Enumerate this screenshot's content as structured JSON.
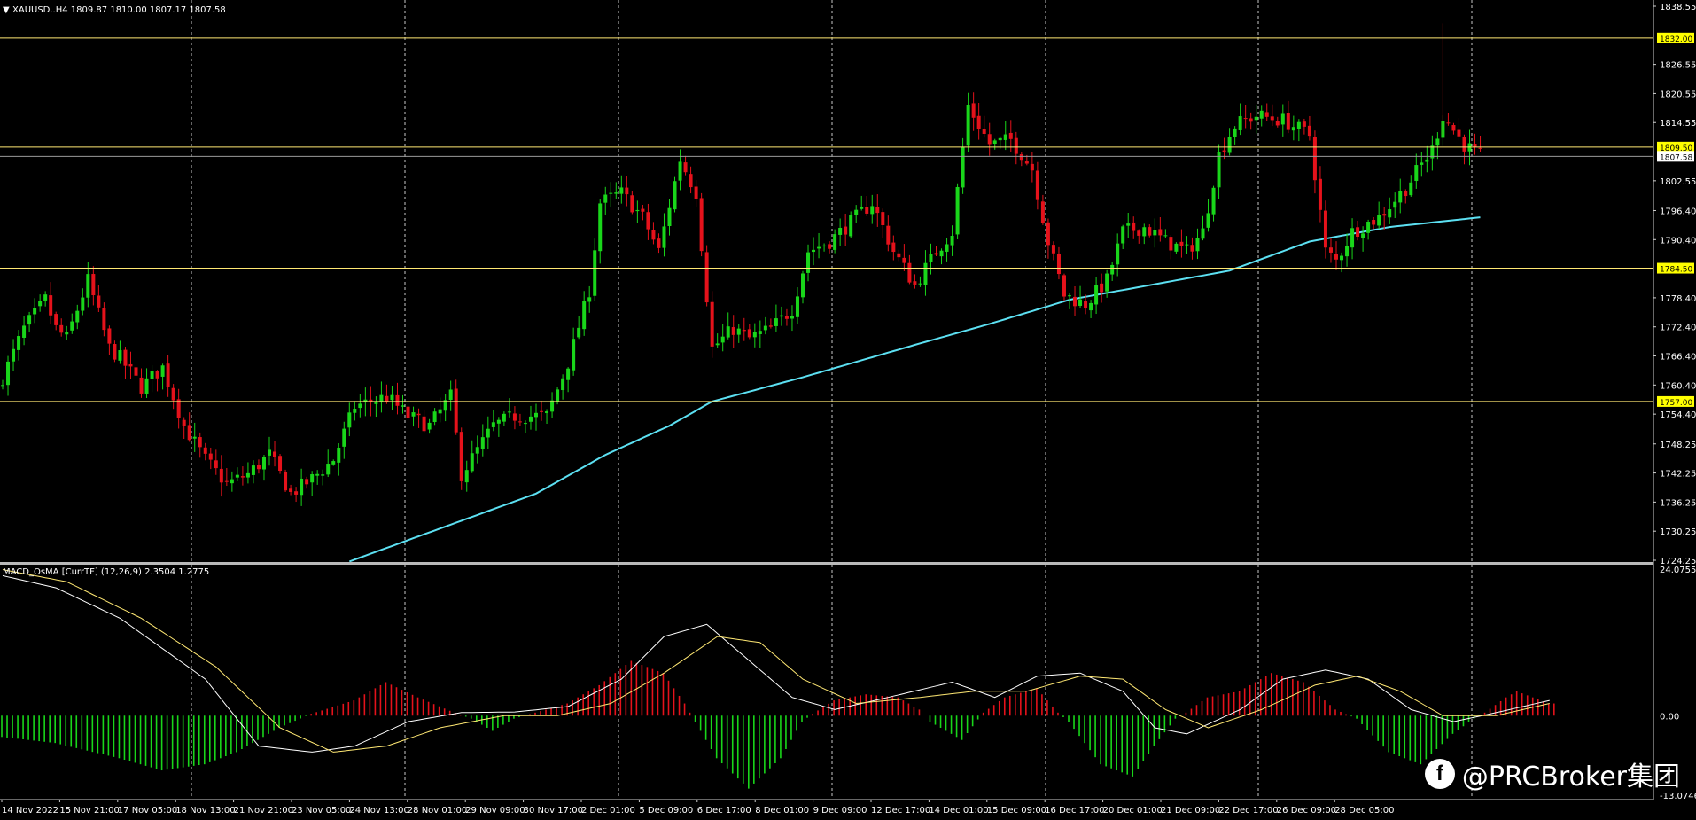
{
  "chart_data": [
    {
      "type": "candlestick",
      "symbol_header": "XAUUSD..H4  1809.87 1810.00 1807.17 1807.58",
      "symbol_marker_icon": "triangle-down-icon",
      "y_ticks": [
        "1838.55",
        "1826.55",
        "1820.55",
        "1814.55",
        "1802.55",
        "1796.40",
        "1790.40",
        "1778.40",
        "1772.40",
        "1766.40",
        "1760.40",
        "1754.40",
        "1748.25",
        "1742.25",
        "1736.25",
        "1730.25",
        "1724.25"
      ],
      "ylim": [
        1724.25,
        1838.55
      ],
      "x_ticks": [
        "14 Nov 2022",
        "15 Nov 21:00",
        "17 Nov 05:00",
        "18 Nov 13:00",
        "21 Nov 21:00",
        "23 Nov 05:00",
        "24 Nov 13:00",
        "28 Nov 01:00",
        "29 Nov 09:00",
        "30 Nov 17:00",
        "2 Dec 01:00",
        "5 Dec 09:00",
        "6 Dec 17:00",
        "8 Dec 01:00",
        "9 Dec 09:00",
        "12 Dec 17:00",
        "14 Dec 01:00",
        "15 Dec 09:00",
        "16 Dec 17:00",
        "20 Dec 01:00",
        "21 Dec 09:00",
        "22 Dec 17:00",
        "26 Dec 09:00",
        "28 Dec 05:00"
      ],
      "horizontal_levels": [
        {
          "value": 1832.0,
          "label": "1832.00"
        },
        {
          "value": 1809.5,
          "label": "1809.50"
        },
        {
          "value": 1784.5,
          "label": "1784.50"
        },
        {
          "value": 1757.0,
          "label": "1757.00"
        }
      ],
      "current_price": {
        "value": 1807.58,
        "label": "1807.58"
      },
      "key_closes": [
        [
          0,
          1762
        ],
        [
          4,
          1772
        ],
        [
          8,
          1778
        ],
        [
          10,
          1772
        ],
        [
          12,
          1770
        ],
        [
          16,
          1782
        ],
        [
          20,
          1768
        ],
        [
          22,
          1766
        ],
        [
          26,
          1760
        ],
        [
          30,
          1764
        ],
        [
          34,
          1752
        ],
        [
          38,
          1745
        ],
        [
          42,
          1740
        ],
        [
          46,
          1742
        ],
        [
          50,
          1746
        ],
        [
          54,
          1738
        ],
        [
          58,
          1741
        ],
        [
          62,
          1745
        ],
        [
          66,
          1756
        ],
        [
          72,
          1758
        ],
        [
          76,
          1754
        ],
        [
          80,
          1752
        ],
        [
          84,
          1758
        ],
        [
          86,
          1742
        ],
        [
          92,
          1752
        ],
        [
          96,
          1754
        ],
        [
          102,
          1754
        ],
        [
          106,
          1765
        ],
        [
          110,
          1780
        ],
        [
          112,
          1798
        ],
        [
          116,
          1800
        ],
        [
          120,
          1795
        ],
        [
          123,
          1788
        ],
        [
          127,
          1807
        ],
        [
          130,
          1800
        ],
        [
          133,
          1768
        ],
        [
          137,
          1772
        ],
        [
          140,
          1770
        ],
        [
          144,
          1772
        ],
        [
          148,
          1776
        ],
        [
          151,
          1788
        ],
        [
          155,
          1790
        ],
        [
          159,
          1794
        ],
        [
          163,
          1798
        ],
        [
          167,
          1788
        ],
        [
          171,
          1781
        ],
        [
          175,
          1788
        ],
        [
          178,
          1792
        ],
        [
          181,
          1818
        ],
        [
          185,
          1810
        ],
        [
          189,
          1811
        ],
        [
          193,
          1805
        ],
        [
          196,
          1790
        ],
        [
          199,
          1779
        ],
        [
          203,
          1777
        ],
        [
          207,
          1782
        ],
        [
          210,
          1792
        ],
        [
          214,
          1793
        ],
        [
          218,
          1790
        ],
        [
          222,
          1788
        ],
        [
          225,
          1792
        ],
        [
          228,
          1808
        ],
        [
          231,
          1814
        ],
        [
          235,
          1816
        ],
        [
          240,
          1815
        ],
        [
          245,
          1812
        ],
        [
          248,
          1788
        ],
        [
          250,
          1786
        ],
        [
          253,
          1792
        ],
        [
          258,
          1795
        ],
        [
          263,
          1801
        ],
        [
          266,
          1806
        ],
        [
          268,
          1809
        ],
        [
          270,
          1816
        ],
        [
          274,
          1810
        ],
        [
          277,
          1807.6
        ]
      ],
      "ma_series_color": "#5ce0f2",
      "ma_values": [
        [
          65,
          1724
        ],
        [
          80,
          1730
        ],
        [
          100,
          1738
        ],
        [
          113,
          1746
        ],
        [
          125,
          1752
        ],
        [
          133,
          1757
        ],
        [
          150,
          1762
        ],
        [
          172,
          1769
        ],
        [
          185,
          1773
        ],
        [
          200,
          1778
        ],
        [
          215,
          1781
        ],
        [
          230,
          1784
        ],
        [
          245,
          1790
        ],
        [
          260,
          1793
        ],
        [
          277,
          1795
        ]
      ],
      "colors": {
        "bull": "#19d61a",
        "bear": "#e5121b",
        "level": "#ffe873",
        "level_label_bg": "#ffff00",
        "grid": "#c8c8c8"
      }
    },
    {
      "type": "histogram+lines",
      "indicator_header": "MACD_OsMA [CurrTF] (12,26,9) 2.3504 1.2775",
      "y_ticks": [
        "24.0755",
        "0.00",
        "-13.0746"
      ],
      "ylim": [
        -13.0746,
        24.0755
      ],
      "histogram_key": [
        [
          0,
          -3.5
        ],
        [
          10,
          -4.5
        ],
        [
          22,
          -7
        ],
        [
          30,
          -9
        ],
        [
          38,
          -8
        ],
        [
          44,
          -6
        ],
        [
          52,
          -2
        ],
        [
          58,
          0.3
        ],
        [
          66,
          2.5
        ],
        [
          72,
          5.5
        ],
        [
          78,
          3
        ],
        [
          84,
          0.8
        ],
        [
          88,
          -0.5
        ],
        [
          92,
          -2.5
        ],
        [
          96,
          -0.5
        ],
        [
          100,
          0.5
        ],
        [
          106,
          2
        ],
        [
          112,
          5
        ],
        [
          118,
          9
        ],
        [
          124,
          7
        ],
        [
          128,
          2
        ],
        [
          130,
          -1
        ],
        [
          134,
          -7
        ],
        [
          140,
          -12
        ],
        [
          146,
          -7
        ],
        [
          150,
          -1
        ],
        [
          152,
          0.3
        ],
        [
          156,
          2.5
        ],
        [
          162,
          3.5
        ],
        [
          168,
          3
        ],
        [
          172,
          1
        ],
        [
          174,
          -1
        ],
        [
          180,
          -4
        ],
        [
          184,
          0.5
        ],
        [
          188,
          3
        ],
        [
          194,
          4.5
        ],
        [
          198,
          0.5
        ],
        [
          200,
          -1
        ],
        [
          206,
          -8
        ],
        [
          212,
          -10
        ],
        [
          216,
          -5
        ],
        [
          220,
          -0.5
        ],
        [
          222,
          0.5
        ],
        [
          226,
          3
        ],
        [
          232,
          4
        ],
        [
          238,
          7
        ],
        [
          244,
          5.5
        ],
        [
          250,
          1
        ],
        [
          254,
          -0.5
        ],
        [
          260,
          -6
        ],
        [
          266,
          -8
        ],
        [
          272,
          -3
        ],
        [
          276,
          -0.5
        ],
        [
          278,
          0.5
        ],
        [
          282,
          3
        ],
        [
          284,
          4
        ],
        [
          290,
          2
        ]
      ],
      "macd_key": [
        [
          0,
          23
        ],
        [
          10,
          21
        ],
        [
          22,
          16
        ],
        [
          38,
          6
        ],
        [
          48,
          -5
        ],
        [
          58,
          -6
        ],
        [
          66,
          -5
        ],
        [
          76,
          -1
        ],
        [
          86,
          0.5
        ],
        [
          96,
          0.6
        ],
        [
          106,
          1.5
        ],
        [
          116,
          6
        ],
        [
          124,
          13
        ],
        [
          132,
          15
        ],
        [
          140,
          9
        ],
        [
          148,
          3
        ],
        [
          156,
          1
        ],
        [
          166,
          3
        ],
        [
          178,
          5.5
        ],
        [
          186,
          3
        ],
        [
          194,
          6.5
        ],
        [
          202,
          7
        ],
        [
          210,
          4
        ],
        [
          216,
          -2
        ],
        [
          222,
          -3
        ],
        [
          232,
          1
        ],
        [
          240,
          6
        ],
        [
          248,
          7.5
        ],
        [
          256,
          6
        ],
        [
          264,
          1
        ],
        [
          272,
          -1
        ],
        [
          280,
          0.5
        ],
        [
          290,
          2.5
        ]
      ],
      "signal_key": [
        [
          0,
          24
        ],
        [
          12,
          22
        ],
        [
          26,
          16
        ],
        [
          40,
          8
        ],
        [
          52,
          -2
        ],
        [
          62,
          -6
        ],
        [
          72,
          -5
        ],
        [
          82,
          -2
        ],
        [
          94,
          0
        ],
        [
          104,
          0
        ],
        [
          114,
          2
        ],
        [
          124,
          7
        ],
        [
          134,
          13
        ],
        [
          142,
          12
        ],
        [
          150,
          6
        ],
        [
          160,
          2
        ],
        [
          172,
          3
        ],
        [
          182,
          4
        ],
        [
          192,
          4
        ],
        [
          202,
          6.5
        ],
        [
          210,
          6
        ],
        [
          218,
          1
        ],
        [
          226,
          -2
        ],
        [
          236,
          1
        ],
        [
          246,
          5
        ],
        [
          254,
          6.5
        ],
        [
          262,
          4
        ],
        [
          270,
          0
        ],
        [
          280,
          0
        ],
        [
          290,
          2
        ]
      ],
      "colors": {
        "pos": "#e5121b",
        "neg": "#19d61a",
        "macd": "#ffffff",
        "signal": "#ffe873"
      }
    }
  ],
  "watermark": {
    "text": "@PRCBroker集团",
    "icon": "facebook-icon",
    "icon_glyph": "f"
  }
}
